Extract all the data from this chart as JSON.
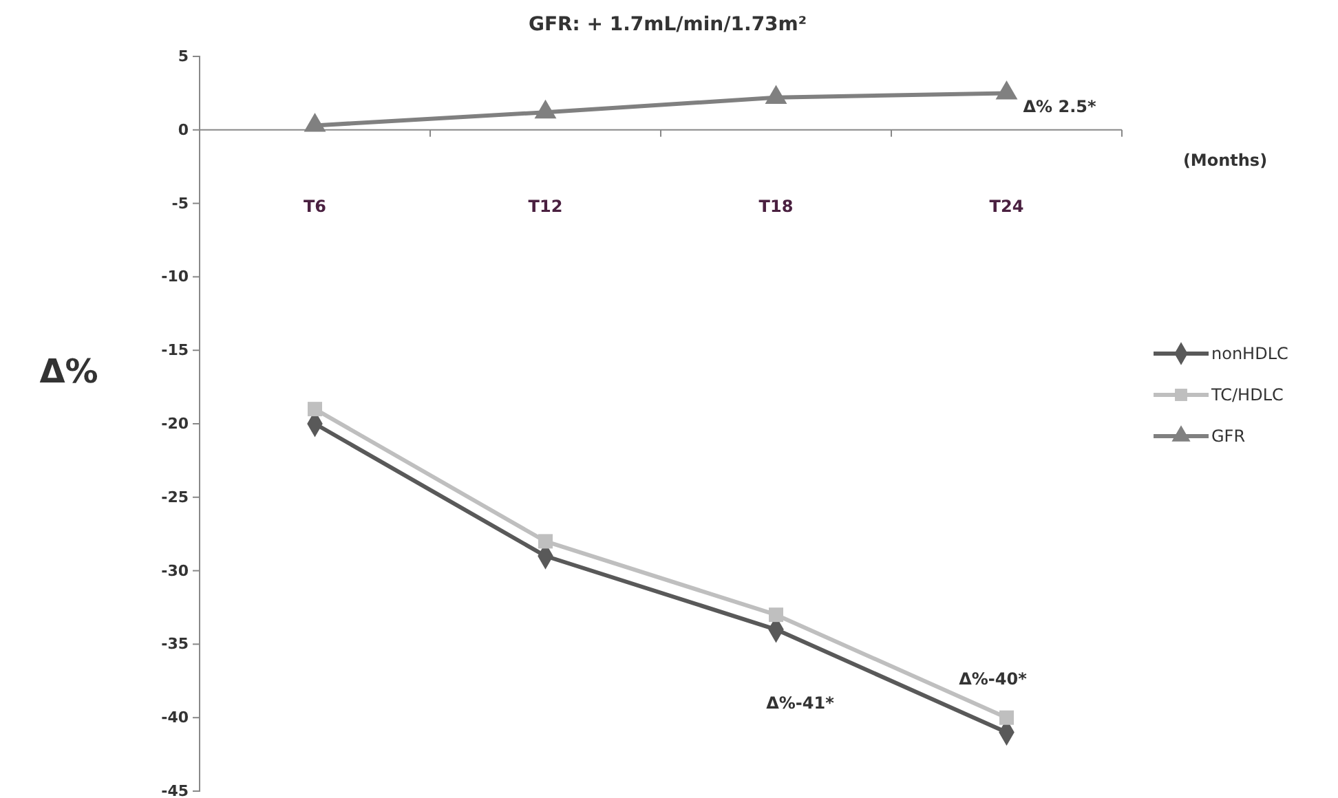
{
  "chart_data": {
    "type": "line",
    "title": "GFR:  + 1.7mL/min/1.73m²",
    "ylabel": "Δ%",
    "xlabel": "(Months)",
    "categories": [
      "T6",
      "T12",
      "T18",
      "T24"
    ],
    "series": [
      {
        "name": "nonHDLC",
        "color": "#595959",
        "marker": "diamond",
        "values": [
          -20,
          -29,
          -34,
          -41
        ]
      },
      {
        "name": "TC/HDLC",
        "color": "#bfbfbf",
        "marker": "square",
        "values": [
          -19,
          -28,
          -33,
          -40
        ]
      },
      {
        "name": "GFR",
        "color": "#808080",
        "marker": "triangle",
        "values": [
          0.3,
          1.2,
          2.2,
          2.5
        ]
      }
    ],
    "ylim": [
      -45,
      5
    ],
    "yticks": [
      -45,
      -40,
      -35,
      -30,
      -25,
      -20,
      -15,
      -10,
      -5,
      0,
      5
    ],
    "annotations": [
      {
        "text": "Δ% 2.5*",
        "x": "T24",
        "y": 2.5
      },
      {
        "text": "Δ%-40*",
        "x": "T24",
        "y": -40
      },
      "Δ%-41*"
    ],
    "legend": "right"
  }
}
